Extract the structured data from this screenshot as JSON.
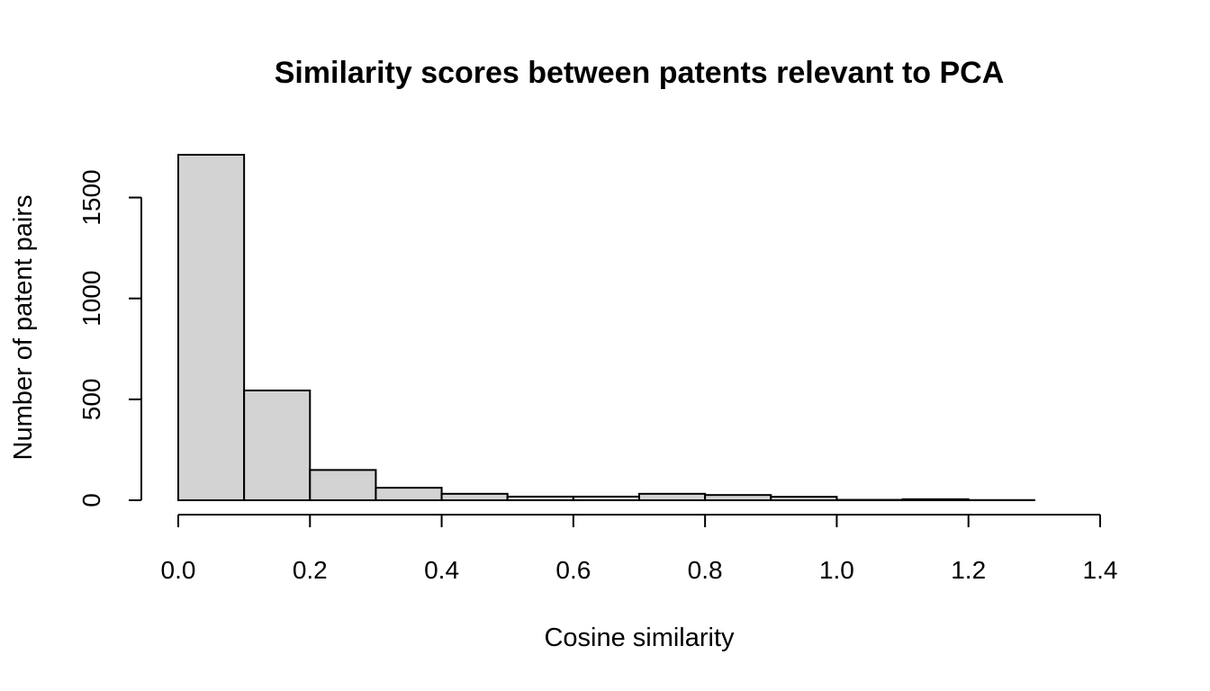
{
  "chart_data": {
    "type": "bar",
    "title": "Similarity scores between patents relevant to PCA",
    "xlabel": "Cosine similarity",
    "ylabel": "Number of patent pairs",
    "bin_edges": [
      0.0,
      0.1,
      0.2,
      0.3,
      0.4,
      0.5,
      0.6,
      0.7,
      0.8,
      0.9,
      1.0,
      1.1,
      1.2,
      1.3,
      1.4
    ],
    "values": [
      1712,
      544,
      150,
      62,
      32,
      18,
      18,
      32,
      26,
      17,
      2,
      5,
      1,
      0
    ],
    "xlim": [
      0.0,
      1.4
    ],
    "ylim": [
      0,
      1712
    ],
    "x_ticks": [
      0.0,
      0.2,
      0.4,
      0.6,
      0.8,
      1.0,
      1.2,
      1.4
    ],
    "x_tick_labels": [
      "0.0",
      "0.2",
      "0.4",
      "0.6",
      "0.8",
      "1.0",
      "1.2",
      "1.4"
    ],
    "y_ticks": [
      0,
      500,
      1000,
      1500
    ],
    "y_tick_labels": [
      "0",
      "500",
      "1000",
      "1500"
    ],
    "bar_color": "#d3d3d3",
    "grid": false,
    "legend": "none"
  }
}
